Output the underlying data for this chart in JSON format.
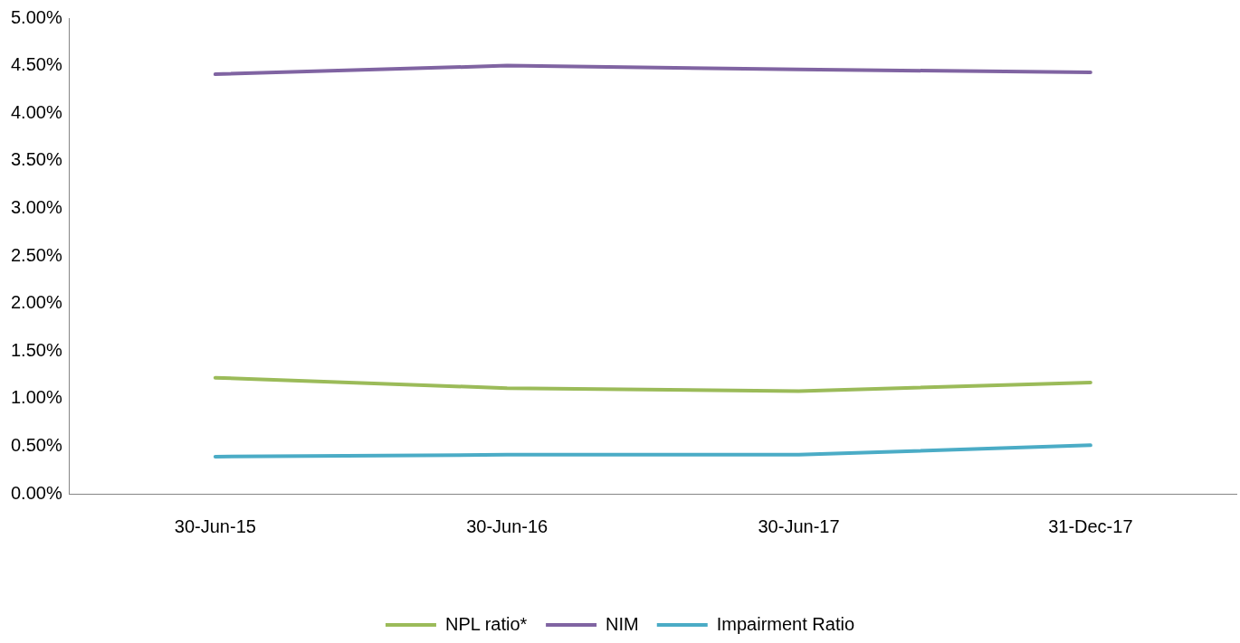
{
  "chart_data": {
    "type": "line",
    "categories": [
      "30-Jun-15",
      "30-Jun-16",
      "30-Jun-17",
      "31-Dec-17"
    ],
    "series": [
      {
        "name": "NPL ratio*",
        "color": "#9bbb59",
        "values": [
          1.22,
          1.11,
          1.08,
          1.17
        ]
      },
      {
        "name": "NIM",
        "color": "#8064a2",
        "values": [
          4.41,
          4.5,
          4.46,
          4.43
        ]
      },
      {
        "name": "Impairment Ratio",
        "color": "#4bacc6",
        "values": [
          0.39,
          0.41,
          0.41,
          0.51
        ]
      }
    ],
    "ylim": [
      0,
      5
    ],
    "yticks": [
      {
        "value": 0,
        "label": "0.00%"
      },
      {
        "value": 0.5,
        "label": "0.50%"
      },
      {
        "value": 1,
        "label": "1.00%"
      },
      {
        "value": 1.5,
        "label": "1.50%"
      },
      {
        "value": 2,
        "label": "2.00%"
      },
      {
        "value": 2.5,
        "label": "2.50%"
      },
      {
        "value": 3,
        "label": "3.00%"
      },
      {
        "value": 3.5,
        "label": "3.50%"
      },
      {
        "value": 4,
        "label": "4.00%"
      },
      {
        "value": 4.5,
        "label": "4.50%"
      },
      {
        "value": 5,
        "label": "5.00%"
      }
    ],
    "grid": false,
    "legend": "bottom",
    "marker": "none",
    "line_style": "solid"
  }
}
